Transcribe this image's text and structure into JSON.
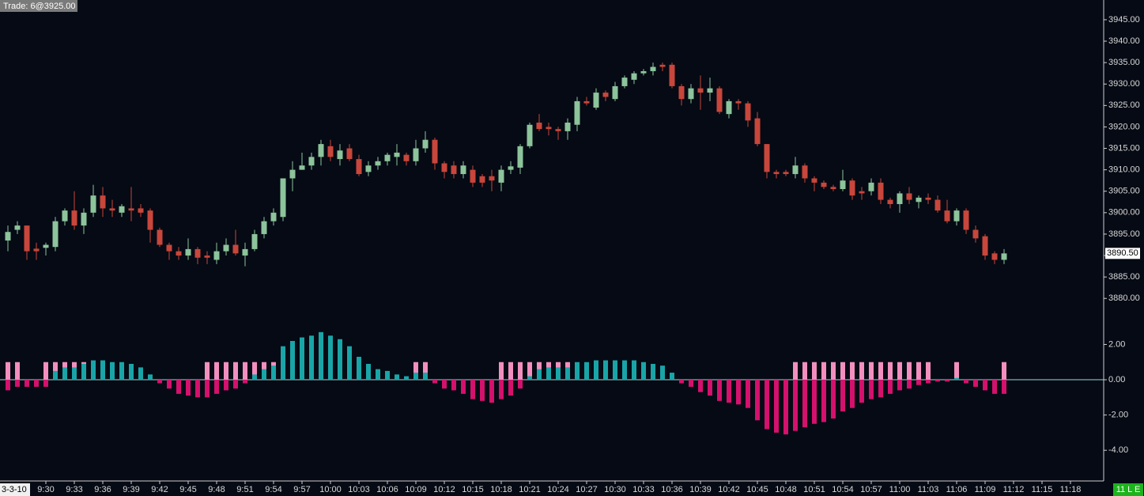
{
  "chart_data": [
    {
      "type": "candlestick",
      "title": "Trade: 6@3925.00",
      "date_label": "3-3-10",
      "status": "11 L E",
      "open": [
        3893.5,
        3896,
        3897,
        3891.6,
        3891.8,
        3892,
        3898,
        3900.5,
        3897,
        3900,
        3904,
        3901,
        3900,
        3901,
        3901,
        3900.5,
        3896,
        3892.5,
        3891,
        3890,
        3891.5,
        3890,
        3889,
        3891,
        3892.5,
        3890,
        3891.5,
        3895,
        3898,
        3899,
        3908,
        3910,
        3911,
        3913,
        3915.5,
        3912.5,
        3915,
        3912.5,
        3909.5,
        3911,
        3912,
        3913,
        3913.5,
        3912,
        3915,
        3917,
        3911.5,
        3911,
        3909,
        3910,
        3908.5,
        3908.5,
        3907,
        3910,
        3910.5,
        3915.5,
        3921,
        3920,
        3919.5,
        3919,
        3920.5,
        3926,
        3924.5,
        3928,
        3926.5,
        3929.5,
        3931,
        3932.5,
        3933,
        3934.5,
        3934.5,
        3929.5,
        3926.5,
        3929,
        3928,
        3929,
        3923,
        3926,
        3925.5,
        3922,
        3916,
        3909.5,
        3909.5,
        3909,
        3911,
        3908,
        3907,
        3906,
        3905.5,
        3907.5,
        3905,
        3905,
        3907,
        3903,
        3902,
        3904.5,
        3902.5,
        3903.5,
        3903,
        3900.5,
        3898,
        3900.5,
        3896,
        3894.5,
        3890.5,
        3889
      ],
      "high": [
        3897,
        3898,
        3897,
        3893,
        3893,
        3899,
        3901,
        3905,
        3901,
        3906.5,
        3906,
        3903,
        3902,
        3906,
        3902,
        3901,
        3896.5,
        3893,
        3892,
        3894,
        3892,
        3891,
        3893,
        3894,
        3896,
        3893,
        3896,
        3899,
        3901,
        3908,
        3912,
        3914,
        3914,
        3917,
        3917,
        3916,
        3916,
        3913.5,
        3912,
        3913,
        3914,
        3916,
        3914,
        3917,
        3919,
        3917.5,
        3912,
        3912,
        3912,
        3911,
        3909,
        3910,
        3911,
        3912,
        3916,
        3921,
        3923,
        3921,
        3920,
        3922,
        3927,
        3927,
        3929,
        3928.5,
        3930.5,
        3932,
        3933,
        3933.5,
        3935,
        3935,
        3935,
        3930,
        3930,
        3932,
        3931.5,
        3929.5,
        3926.5,
        3926.5,
        3926,
        3923.5,
        3916,
        3910,
        3910,
        3913,
        3911.5,
        3908.5,
        3907.5,
        3906.5,
        3910,
        3908,
        3906,
        3908,
        3908,
        3903.5,
        3905,
        3906,
        3904,
        3904.5,
        3904,
        3903,
        3901,
        3901,
        3897,
        3895,
        3891,
        3891.5
      ],
      "low": [
        3891,
        3895,
        3889,
        3889,
        3890,
        3891,
        3897,
        3896,
        3895,
        3899,
        3899,
        3899,
        3899,
        3898,
        3899,
        3893,
        3892,
        3889,
        3889,
        3889,
        3888,
        3888,
        3888,
        3890,
        3890,
        3887.5,
        3891,
        3894,
        3897,
        3898,
        3905,
        3910,
        3910,
        3911,
        3912,
        3911,
        3912,
        3908.5,
        3908.5,
        3910,
        3911,
        3911,
        3911,
        3911,
        3914,
        3910,
        3908,
        3908,
        3908,
        3906,
        3906,
        3905,
        3905,
        3909,
        3909,
        3915,
        3919,
        3918,
        3917,
        3917,
        3919,
        3925,
        3924,
        3926,
        3926,
        3929,
        3930,
        3932,
        3932,
        3933,
        3929,
        3925,
        3925.5,
        3924,
        3926,
        3923,
        3922,
        3924,
        3920,
        3915.5,
        3908,
        3908,
        3908.5,
        3908,
        3907,
        3905,
        3905.5,
        3905,
        3905,
        3903,
        3903,
        3904,
        3902,
        3901,
        3900,
        3902,
        3901,
        3902,
        3900,
        3897.5,
        3897,
        3895,
        3893,
        3889,
        3888,
        3888
      ],
      "close": [
        3895.5,
        3897,
        3891,
        3891,
        3892.5,
        3898,
        3900.5,
        3897,
        3900,
        3904,
        3901,
        3900.5,
        3901.5,
        3900.5,
        3900,
        3896,
        3892.5,
        3891,
        3890,
        3891.5,
        3889.5,
        3889.5,
        3891,
        3892.5,
        3890.5,
        3891.5,
        3895,
        3898,
        3900,
        3908,
        3910,
        3911,
        3913,
        3916,
        3913,
        3914.5,
        3912.5,
        3909,
        3911,
        3912,
        3913.5,
        3914,
        3912,
        3915,
        3917,
        3911.5,
        3909.5,
        3909,
        3911,
        3907,
        3907,
        3907.5,
        3910,
        3910.8,
        3915.5,
        3920.5,
        3919.5,
        3919.5,
        3919,
        3921,
        3926,
        3925.5,
        3928,
        3927,
        3929.5,
        3931.5,
        3932.5,
        3933,
        3934,
        3934,
        3929.5,
        3926.5,
        3929,
        3928,
        3929,
        3923.5,
        3926,
        3925.5,
        3921.5,
        3916,
        3909.5,
        3909,
        3909,
        3911,
        3908,
        3907,
        3906,
        3905.5,
        3907.5,
        3904,
        3904.5,
        3907,
        3903,
        3902,
        3904.5,
        3903,
        3903.5,
        3903,
        3900.5,
        3898,
        3900.5,
        3896,
        3894,
        3890,
        3889,
        3890.5
      ],
      "up_color": "#8dc49b",
      "down_color": "#c8463b",
      "ylim": [
        3875.8,
        3949.6
      ],
      "yticks": [
        {
          "value": 3880,
          "label": "3880.00"
        },
        {
          "value": 3885,
          "label": "3885.00"
        },
        {
          "value": 3890,
          "label": "3890.00"
        },
        {
          "value": 3895,
          "label": "3895.00"
        },
        {
          "value": 3900,
          "label": "3900.00"
        },
        {
          "value": 3905,
          "label": "3905.00"
        },
        {
          "value": 3910,
          "label": "3910.00"
        },
        {
          "value": 3915,
          "label": "3915.00"
        },
        {
          "value": 3920,
          "label": "3920.00"
        },
        {
          "value": 3925,
          "label": "3925.00"
        },
        {
          "value": 3930,
          "label": "3930.00"
        },
        {
          "value": 3935,
          "label": "3935.00"
        },
        {
          "value": 3940,
          "label": "3940.00"
        },
        {
          "value": 3945,
          "label": "3945.00"
        }
      ],
      "last_price": {
        "value": 3890.5,
        "label": "3890.50"
      },
      "xticks": [
        {
          "value": 4,
          "label": "9:30"
        },
        {
          "value": 7,
          "label": "9:33"
        },
        {
          "value": 10,
          "label": "9:36"
        },
        {
          "value": 13,
          "label": "9:39"
        },
        {
          "value": 16,
          "label": "9:42"
        },
        {
          "value": 19,
          "label": "9:45"
        },
        {
          "value": 22,
          "label": "9:48"
        },
        {
          "value": 25,
          "label": "9:51"
        },
        {
          "value": 28,
          "label": "9:54"
        },
        {
          "value": 31,
          "label": "9:57"
        },
        {
          "value": 34,
          "label": "10:00"
        },
        {
          "value": 37,
          "label": "10:03"
        },
        {
          "value": 40,
          "label": "10:06"
        },
        {
          "value": 43,
          "label": "10:09"
        },
        {
          "value": 46,
          "label": "10:12"
        },
        {
          "value": 49,
          "label": "10:15"
        },
        {
          "value": 52,
          "label": "10:18"
        },
        {
          "value": 55,
          "label": "10:21"
        },
        {
          "value": 58,
          "label": "10:24"
        },
        {
          "value": 61,
          "label": "10:27"
        },
        {
          "value": 64,
          "label": "10:30"
        },
        {
          "value": 67,
          "label": "10:33"
        },
        {
          "value": 70,
          "label": "10:36"
        },
        {
          "value": 73,
          "label": "10:39"
        },
        {
          "value": 76,
          "label": "10:42"
        },
        {
          "value": 79,
          "label": "10:45"
        },
        {
          "value": 82,
          "label": "10:48"
        },
        {
          "value": 85,
          "label": "10:51"
        },
        {
          "value": 88,
          "label": "10:54"
        },
        {
          "value": 91,
          "label": "10:57"
        },
        {
          "value": 94,
          "label": "11:00"
        },
        {
          "value": 97,
          "label": "11:03"
        },
        {
          "value": 100,
          "label": "11:06"
        },
        {
          "value": 103,
          "label": "11:09"
        },
        {
          "value": 106,
          "label": "11:12"
        },
        {
          "value": 109,
          "label": "11:15"
        },
        {
          "value": 112,
          "label": "11:18"
        }
      ]
    },
    {
      "type": "histogram",
      "series": [
        {
          "color": "#f28fbe",
          "values": [
            1,
            1,
            null,
            null,
            1,
            1,
            1,
            1,
            1,
            null,
            null,
            null,
            null,
            null,
            null,
            null,
            null,
            null,
            null,
            null,
            null,
            1,
            1,
            1,
            1,
            1,
            1,
            1,
            1,
            null,
            null,
            null,
            null,
            null,
            null,
            null,
            null,
            null,
            null,
            null,
            null,
            null,
            null,
            1,
            1,
            null,
            null,
            null,
            null,
            null,
            null,
            null,
            1,
            1,
            1,
            1,
            1,
            1,
            1,
            1,
            null,
            null,
            null,
            null,
            null,
            null,
            null,
            null,
            null,
            null,
            null,
            null,
            null,
            null,
            null,
            null,
            null,
            null,
            null,
            null,
            null,
            null,
            null,
            1,
            1,
            1,
            1,
            1,
            1,
            1,
            1,
            1,
            1,
            1,
            1,
            1,
            1,
            1,
            null,
            null,
            1,
            null,
            null,
            null,
            null,
            1
          ]
        },
        {
          "color": "#19a5a8",
          "negative_color": "#d4116d",
          "values": [
            -0.6,
            -0.4,
            -0.4,
            -0.4,
            -0.4,
            0.5,
            0.7,
            0.7,
            0.9,
            1.1,
            1.1,
            1.0,
            1.0,
            0.9,
            0.7,
            0.3,
            -0.2,
            -0.5,
            -0.8,
            -0.9,
            -1.0,
            -1.0,
            -0.8,
            -0.6,
            -0.5,
            -0.2,
            0.3,
            0.6,
            0.8,
            1.9,
            2.2,
            2.4,
            2.5,
            2.7,
            2.5,
            2.3,
            1.9,
            1.3,
            0.9,
            0.6,
            0.5,
            0.3,
            0.2,
            0.4,
            0.4,
            -0.2,
            -0.5,
            -0.6,
            -0.8,
            -1.1,
            -1.2,
            -1.3,
            -1.1,
            -0.9,
            -0.5,
            0.2,
            0.6,
            0.7,
            0.7,
            0.7,
            1.0,
            1.0,
            1.1,
            1.1,
            1.1,
            1.1,
            1.1,
            1.0,
            0.9,
            0.8,
            0.4,
            -0.2,
            -0.4,
            -0.7,
            -0.9,
            -1.2,
            -1.3,
            -1.4,
            -1.6,
            -2.3,
            -2.8,
            -3.0,
            -3.1,
            -2.9,
            -2.7,
            -2.5,
            -2.4,
            -2.2,
            -1.8,
            -1.6,
            -1.3,
            -1.1,
            -1.0,
            -0.8,
            -0.6,
            -0.5,
            -0.3,
            -0.2,
            -0.1,
            -0.1,
            0.1,
            -0.2,
            -0.4,
            -0.6,
            -0.8,
            -0.8
          ]
        }
      ],
      "ylim": [
        -5.74,
        3.59
      ],
      "yticks": [
        {
          "value": 2,
          "label": "2.00"
        },
        {
          "value": 0,
          "label": "0.00"
        },
        {
          "value": -2,
          "label": "-2.00"
        },
        {
          "value": -4,
          "label": "-4.00"
        }
      ]
    }
  ]
}
